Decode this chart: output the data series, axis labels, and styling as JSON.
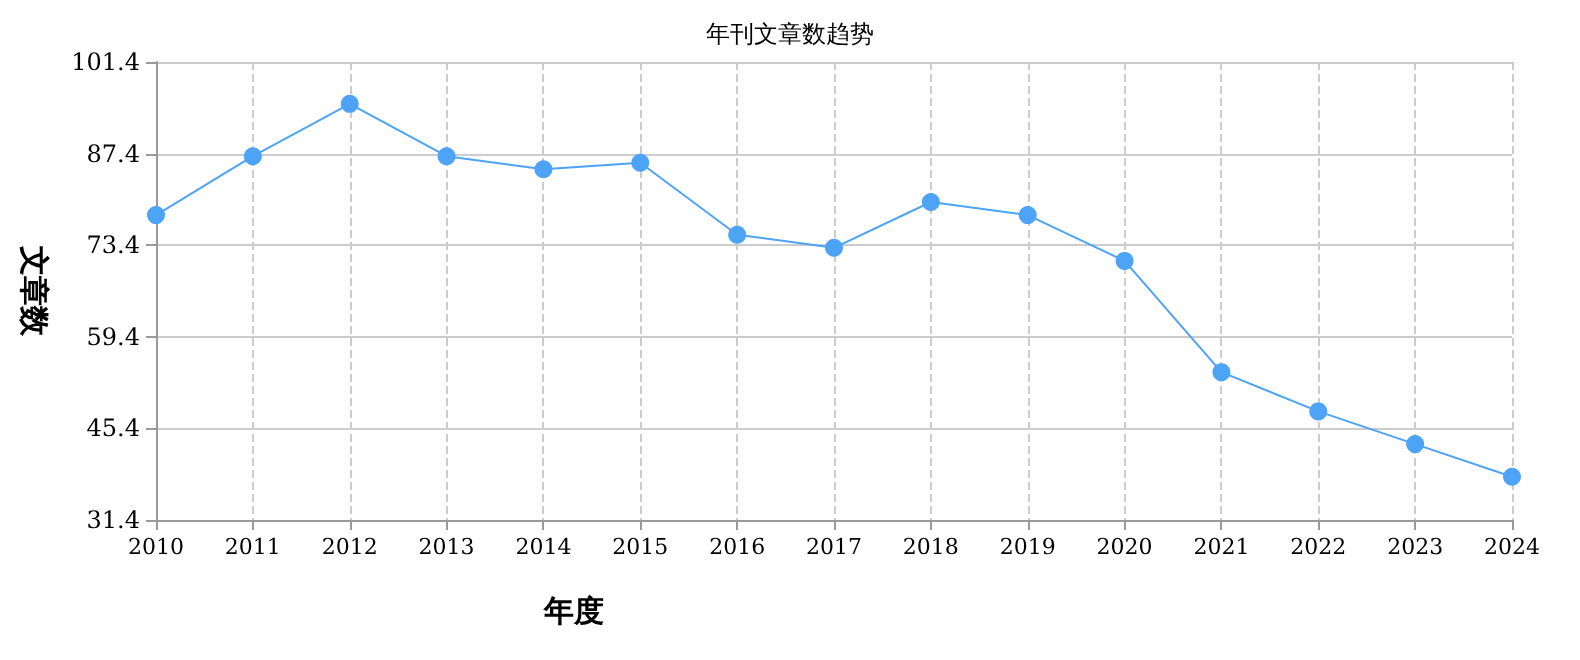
{
  "chart_data": {
    "type": "line",
    "title": "年刊文章数趋势",
    "xlabel": "年度",
    "ylabel": "文章数",
    "categories": [
      "2010",
      "2011",
      "2012",
      "2013",
      "2014",
      "2015",
      "2016",
      "2017",
      "2018",
      "2019",
      "2020",
      "2021",
      "2022",
      "2023",
      "2024"
    ],
    "series": [
      {
        "color": "#4da3f5",
        "values": [
          78,
          87,
          95,
          87,
          85,
          86,
          75,
          73,
          80,
          78,
          71,
          54,
          48,
          43,
          38
        ]
      }
    ],
    "ylim": [
      31.4,
      101.4
    ],
    "yticks": [
      31.4,
      45.4,
      59.4,
      73.4,
      87.4,
      101.4
    ],
    "grid": true,
    "marker": "circle",
    "line_style": "solid"
  }
}
